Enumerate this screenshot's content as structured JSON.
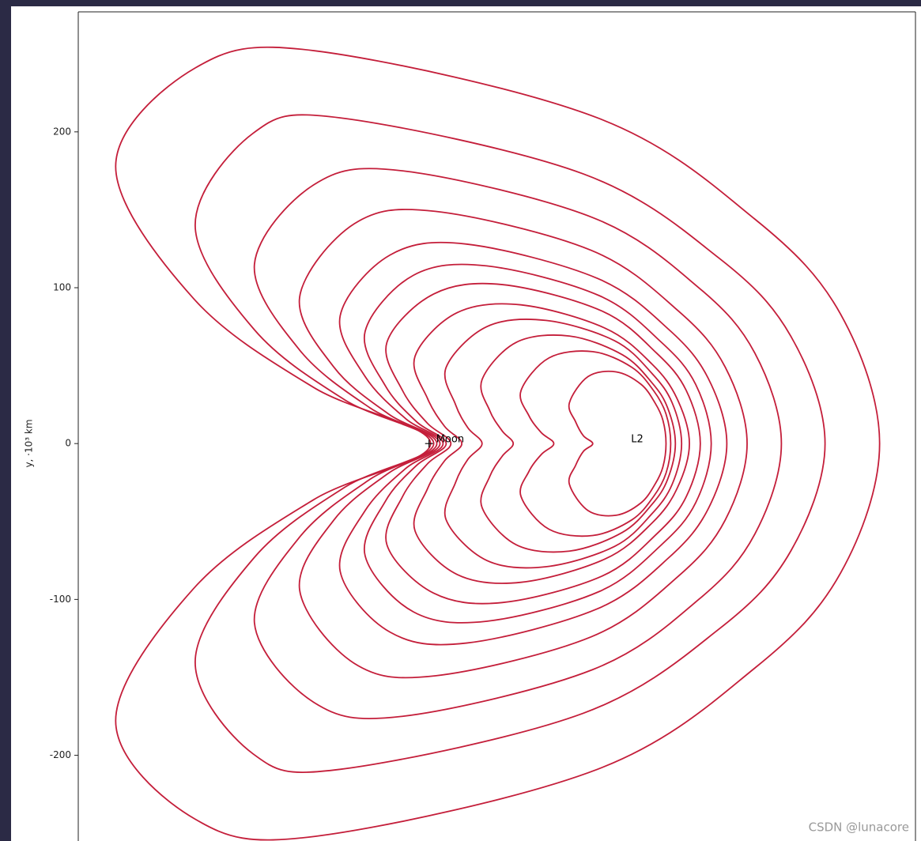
{
  "chart_data": {
    "type": "line",
    "ylabel": "y, ·10³ km",
    "xlim": [
      -225,
      312
    ],
    "ylim": [
      -255,
      277
    ],
    "yticks": [
      -200,
      -100,
      0,
      100,
      200
    ],
    "color": "#c41e3a",
    "series": [
      {
        "x": [
          1,
          -74,
          -151,
          -201,
          -150,
          -73,
          108,
          209,
          264,
          289,
          264,
          209,
          108,
          -73,
          -150,
          -201,
          -151,
          -74
        ],
        "y": [
          0,
          36,
          93,
          178,
          241,
          252,
          209,
          144,
          83,
          0,
          -83,
          -144,
          -209,
          -252,
          -241,
          -178,
          -93,
          -36
        ]
      },
      {
        "x": [
          3,
          -54,
          -112,
          -150,
          -113,
          -57,
          99,
          186,
          232,
          254,
          232,
          186,
          99,
          -57,
          -113,
          -150,
          -112,
          -54
        ],
        "y": [
          0,
          28,
          73,
          140,
          199,
          209,
          173,
          119,
          69,
          0,
          -69,
          -119,
          -173,
          -209,
          -199,
          -140,
          -73,
          -28
        ]
      },
      {
        "x": [
          5,
          -38,
          -83,
          -112,
          -74,
          -17,
          105,
          173,
          209,
          226,
          209,
          173,
          105,
          -17,
          -74,
          -112,
          -83,
          -38
        ],
        "y": [
          0,
          23,
          60,
          115,
          166,
          175,
          145,
          100,
          58,
          0,
          -58,
          -100,
          -145,
          -175,
          -166,
          -115,
          -60,
          -23
        ]
      },
      {
        "x": [
          7,
          -26,
          -61,
          -83,
          -48,
          4,
          104,
          160,
          190,
          204,
          190,
          160,
          104,
          4,
          -48,
          -83,
          -61,
          -26
        ],
        "y": [
          0,
          19,
          49,
          94,
          141,
          149,
          124,
          85,
          49,
          0,
          -49,
          -85,
          -124,
          -149,
          -141,
          -94,
          -49,
          -19
        ]
      },
      {
        "x": [
          9,
          -15,
          -41,
          -57,
          -25,
          24,
          108,
          154,
          179,
          191,
          179,
          154,
          108,
          24,
          -25,
          -57,
          -41,
          -15
        ],
        "y": [
          0,
          16,
          43,
          82,
          121,
          128,
          106,
          73,
          42,
          0,
          -42,
          -73,
          -106,
          -128,
          -121,
          -82,
          -43,
          -16
        ]
      },
      {
        "x": [
          11,
          -8,
          -28,
          -41,
          -10,
          37,
          109,
          149,
          171,
          181,
          171,
          149,
          109,
          37,
          -10,
          -41,
          -28,
          -8
        ],
        "y": [
          0,
          14,
          37,
          72,
          108,
          114,
          95,
          65,
          38,
          0,
          -38,
          -65,
          -95,
          -114,
          -108,
          -72,
          -37,
          -14
        ]
      },
      {
        "x": [
          14,
          -1,
          -17,
          -27,
          3,
          47,
          111,
          146,
          165,
          174,
          165,
          146,
          111,
          47,
          3,
          -27,
          -17,
          -1
        ],
        "y": [
          0,
          13,
          34,
          65,
          96,
          102,
          85,
          58,
          34,
          0,
          -34,
          -58,
          -85,
          -102,
          -96,
          -65,
          -34,
          -13
        ]
      },
      {
        "x": [
          21,
          10,
          -1,
          -9,
          18,
          59,
          113,
          143,
          159,
          167,
          159,
          143,
          113,
          59,
          18,
          -9,
          -1,
          10
        ],
        "y": [
          0,
          11,
          29,
          56,
          84,
          89,
          74,
          51,
          29,
          0,
          -29,
          -51,
          -74,
          -89,
          -84,
          -56,
          -29,
          -11
        ]
      },
      {
        "x": [
          34,
          25,
          17,
          11,
          37,
          75,
          119,
          143,
          156,
          162,
          156,
          143,
          119,
          75,
          37,
          11,
          17,
          25
        ],
        "y": [
          0,
          10,
          25,
          49,
          75,
          79,
          66,
          45,
          26,
          0,
          -26,
          -45,
          -66,
          -79,
          -75,
          -49,
          -25,
          -10
        ]
      },
      {
        "x": [
          54,
          47,
          39,
          34,
          56,
          90,
          124,
          143,
          153,
          158,
          153,
          143,
          124,
          90,
          56,
          34,
          39,
          47
        ],
        "y": [
          0,
          8,
          21,
          41,
          65,
          69,
          57,
          39,
          23,
          0,
          -23,
          -39,
          -57,
          -69,
          -65,
          -41,
          -21,
          -8
        ]
      },
      {
        "x": [
          80,
          72,
          64,
          59,
          77,
          105,
          130,
          144,
          152,
          155,
          152,
          144,
          130,
          105,
          77,
          59,
          64,
          72
        ],
        "y": [
          0,
          7,
          18,
          34,
          55,
          59,
          49,
          34,
          19,
          0,
          -19,
          -34,
          -49,
          -59,
          -55,
          -34,
          -18,
          -7
        ]
      },
      {
        "x": [
          105,
          99,
          94,
          90,
          102,
          120,
          136,
          145,
          150,
          152,
          150,
          145,
          136,
          120,
          102,
          90,
          94,
          99
        ],
        "y": [
          0,
          5,
          14,
          26,
          43,
          46,
          38,
          26,
          15,
          0,
          -15,
          -26,
          -38,
          -46,
          -43,
          -26,
          -14,
          -5
        ]
      }
    ],
    "points": {
      "x": [
        0
      ],
      "y": [
        0
      ],
      "marker": "+",
      "color": "#000000"
    },
    "annotations": [
      {
        "text": "Moon",
        "x": 0,
        "y": 0
      },
      {
        "text": "L2",
        "x": 125,
        "y": 0
      }
    ]
  },
  "watermark": "CSDN @lunacore"
}
